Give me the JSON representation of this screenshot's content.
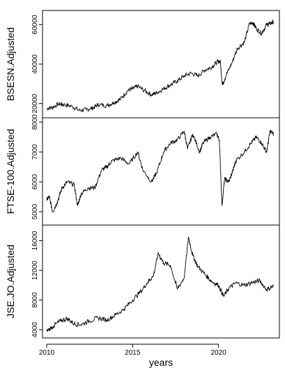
{
  "chart_data": {
    "type": "line",
    "xlabel": "years",
    "x_ticks": [
      "2010",
      "2015",
      "2020"
    ],
    "x_range": [
      2010.0,
      2023.3
    ],
    "panels": [
      {
        "ylabel": "BSESN.Adjusted",
        "ylim": [
          15000,
          65000
        ],
        "y_ticks": [
          {
            "value": 20000,
            "label": "20000"
          },
          {
            "value": 40000,
            "label": "40000"
          },
          {
            "value": 60000,
            "label": "60000"
          }
        ],
        "series": {
          "x": [
            2010.0,
            2010.3,
            2010.7,
            2011.0,
            2011.5,
            2011.9,
            2012.3,
            2012.7,
            2013.0,
            2013.5,
            2013.9,
            2014.3,
            2014.7,
            2015.0,
            2015.3,
            2015.7,
            2016.1,
            2016.4,
            2016.8,
            2017.2,
            2017.6,
            2018.0,
            2018.4,
            2018.8,
            2019.2,
            2019.6,
            2019.9,
            2020.1,
            2020.22,
            2020.45,
            2020.8,
            2021.1,
            2021.5,
            2021.8,
            2022.0,
            2022.2,
            2022.5,
            2022.8,
            2023.0,
            2023.2
          ],
          "y": [
            17500,
            18000,
            19800,
            19500,
            18500,
            16500,
            17000,
            17800,
            19500,
            19000,
            20500,
            22300,
            26500,
            27500,
            28800,
            26500,
            24500,
            25500,
            27500,
            29500,
            31500,
            34000,
            35500,
            34000,
            37000,
            38500,
            41000,
            41500,
            29500,
            34500,
            41000,
            48000,
            51000,
            60500,
            61000,
            58000,
            55500,
            60000,
            60500,
            61500
          ]
        }
      },
      {
        "ylabel": "FTSE-100.Adjusted",
        "ylim": [
          4700,
          8000
        ],
        "y_ticks": [
          {
            "value": 5000,
            "label": "5000"
          },
          {
            "value": 6000,
            "label": "6000"
          },
          {
            "value": 7000,
            "label": "7000"
          },
          {
            "value": 8000,
            "label": "8000"
          }
        ],
        "series": {
          "x": [
            2010.0,
            2010.15,
            2010.35,
            2010.6,
            2010.9,
            2011.2,
            2011.6,
            2011.8,
            2012.0,
            2012.4,
            2012.8,
            2013.2,
            2013.5,
            2013.8,
            2014.3,
            2014.8,
            2015.3,
            2015.6,
            2016.1,
            2016.4,
            2016.8,
            2017.2,
            2017.6,
            2018.0,
            2018.2,
            2018.5,
            2018.9,
            2019.1,
            2019.5,
            2019.9,
            2020.05,
            2020.2,
            2020.35,
            2020.6,
            2020.85,
            2021.0,
            2021.5,
            2021.9,
            2022.2,
            2022.5,
            2022.8,
            2023.0,
            2023.2
          ],
          "y": [
            5400,
            5500,
            5000,
            5300,
            5800,
            6000,
            5900,
            5200,
            5600,
            5800,
            5800,
            6400,
            6500,
            6700,
            6800,
            6600,
            7000,
            6400,
            6000,
            6300,
            7000,
            7300,
            7400,
            7700,
            7100,
            7600,
            7000,
            7300,
            7500,
            7600,
            7400,
            5200,
            6100,
            6000,
            6400,
            6700,
            7000,
            7300,
            7500,
            7300,
            7000,
            7700,
            7600
          ]
        }
      },
      {
        "ylabel": "JSE.JO.Adjusted",
        "ylim": [
          3500,
          17500
        ],
        "y_ticks": [
          {
            "value": 4000,
            "label": "4000"
          },
          {
            "value": 8000,
            "label": "8000"
          },
          {
            "value": 12000,
            "label": "12000"
          },
          {
            "value": 16000,
            "label": "16000"
          }
        ],
        "series": {
          "x": [
            2010.0,
            2010.4,
            2010.8,
            2011.2,
            2011.6,
            2012.0,
            2012.5,
            2013.0,
            2013.5,
            2014.0,
            2014.5,
            2015.0,
            2015.5,
            2015.9,
            2016.2,
            2016.5,
            2016.8,
            2017.2,
            2017.6,
            2018.0,
            2018.25,
            2018.5,
            2018.8,
            2019.2,
            2019.6,
            2020.0,
            2020.3,
            2020.6,
            2021.0,
            2021.5,
            2022.0,
            2022.4,
            2022.8,
            2023.2
          ],
          "y": [
            3800,
            4500,
            5200,
            5500,
            4800,
            4700,
            5200,
            5600,
            5300,
            6000,
            6800,
            8000,
            9200,
            10500,
            11200,
            14300,
            13000,
            12700,
            9500,
            11000,
            16500,
            14000,
            12500,
            11500,
            10500,
            10000,
            8500,
            9600,
            10300,
            10000,
            10400,
            10600,
            9400,
            9900
          ]
        }
      }
    ]
  }
}
